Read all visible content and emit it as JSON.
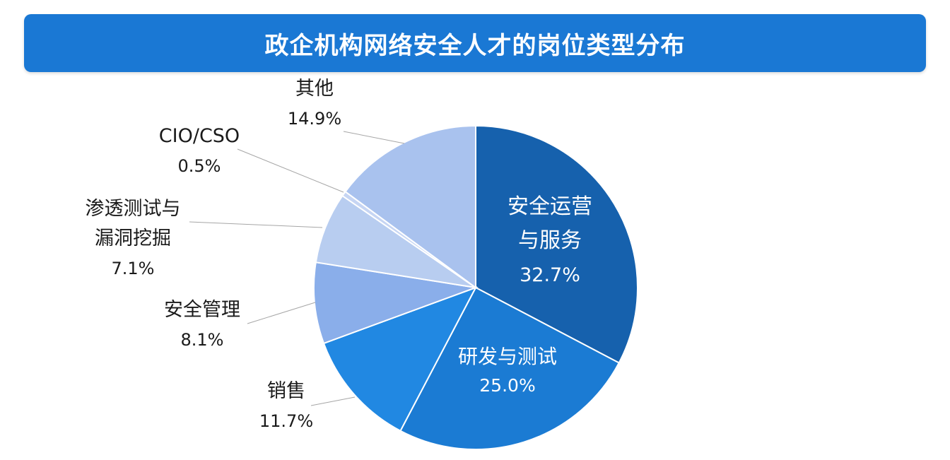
{
  "chart_data": {
    "type": "pie",
    "title": "政企机构网络安全人才的岗位类型分布",
    "slices": [
      {
        "label": [
          "安全运营",
          "与服务"
        ],
        "value": 32.7,
        "value_label": "32.7%",
        "color": "#1661ad",
        "label_inside": true,
        "text_color": "#ffffff"
      },
      {
        "label": [
          "研发与测试"
        ],
        "value": 25.0,
        "value_label": "25.0%",
        "color": "#1b7bd3",
        "label_inside": true,
        "text_color": "#ffffff"
      },
      {
        "label": [
          "销售"
        ],
        "value": 11.7,
        "value_label": "11.7%",
        "color": "#2188e2",
        "label_inside": false,
        "text_color": "#1a1a1a"
      },
      {
        "label": [
          "安全管理"
        ],
        "value": 8.1,
        "value_label": "8.1%",
        "color": "#8aaeea",
        "label_inside": false,
        "text_color": "#1a1a1a"
      },
      {
        "label": [
          "渗透测试与",
          "漏洞挖掘"
        ],
        "value": 7.1,
        "value_label": "7.1%",
        "color": "#b8cdf0",
        "label_inside": false,
        "text_color": "#1a1a1a"
      },
      {
        "label": [
          "CIO/CSO"
        ],
        "value": 0.5,
        "value_label": "0.5%",
        "color": "#c6d5f3",
        "label_inside": false,
        "text_color": "#1a1a1a"
      },
      {
        "label": [
          "其他"
        ],
        "value": 14.9,
        "value_label": "14.9%",
        "color": "#a9c2ee",
        "label_inside": false,
        "text_color": "#1a1a1a"
      }
    ]
  }
}
